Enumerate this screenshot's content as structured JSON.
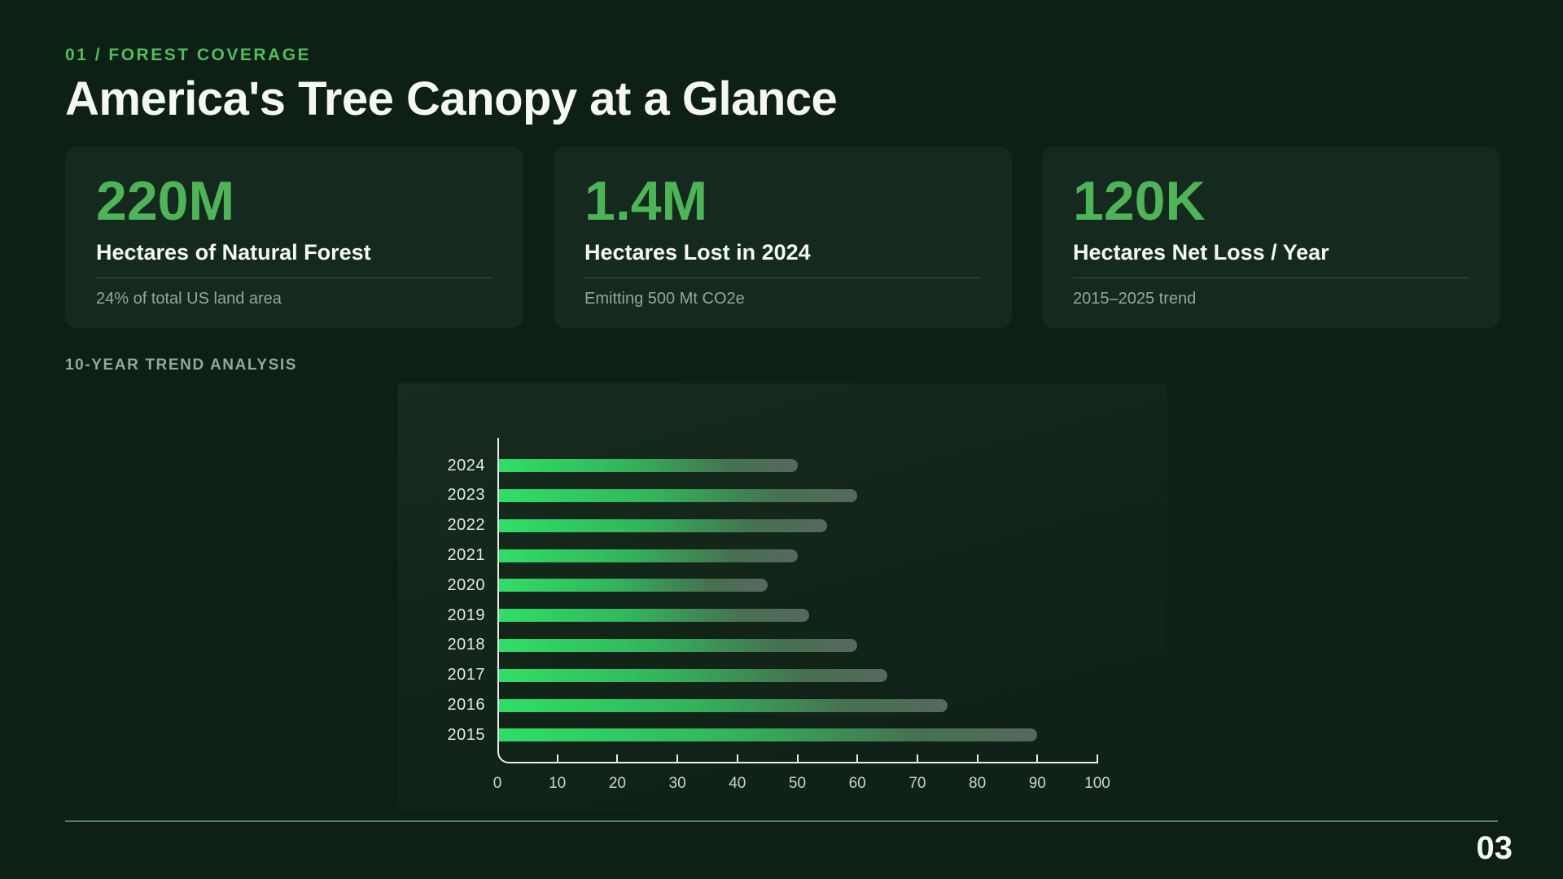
{
  "page": {
    "eyebrow": "01 / FOREST COVERAGE",
    "title": "America's Tree Canopy at a Glance",
    "section_label": "10-YEAR TREND ANALYSIS",
    "page_number": "03"
  },
  "colors": {
    "background": "#0e1f15",
    "card_background": "#15291e",
    "accent_green": "#4db557",
    "bar_gradient_start": "#2fdf67",
    "bar_gradient_end": "#57695d",
    "muted_text": "#93a79a",
    "white_text": "#f5f7f5",
    "axis": "#e9efe9",
    "footer_line": "#4e8457"
  },
  "stats": [
    {
      "value": "220M",
      "label": "Hectares of Natural Forest",
      "description": "24% of total US land area"
    },
    {
      "value": "1.4M",
      "label": "Hectares Lost in 2024",
      "description": "Emitting 500 Mt CO2e"
    },
    {
      "value": "120K",
      "label": "Hectares Net Loss / Year",
      "description": "2015–2025 trend"
    }
  ],
  "chart_data": {
    "type": "bar",
    "orientation": "horizontal",
    "title": "",
    "xlabel": "",
    "ylabel": "",
    "categories": [
      "2024",
      "2023",
      "2022",
      "2021",
      "2020",
      "2019",
      "2018",
      "2017",
      "2016",
      "2015"
    ],
    "values": [
      50,
      60,
      55,
      50,
      45,
      52,
      60,
      65,
      75,
      90
    ],
    "xlim": [
      0,
      100
    ],
    "x_ticks": [
      0,
      10,
      20,
      30,
      40,
      50,
      60,
      70,
      80,
      90,
      100
    ],
    "grid": false,
    "legend": false
  }
}
